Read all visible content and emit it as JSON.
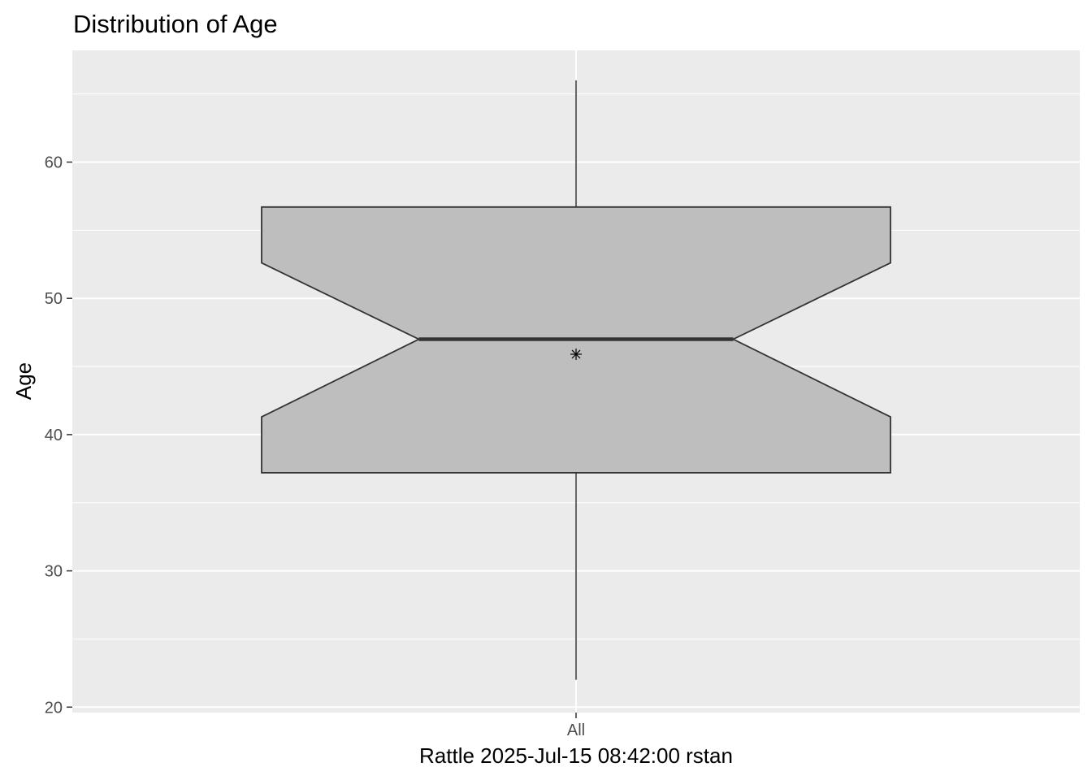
{
  "chart_data": {
    "type": "boxplot",
    "title": "Distribution of Age",
    "xlabel": "Rattle 2025-Jul-15 08:42:00 rstan",
    "ylabel": "Age",
    "categories": [
      "All"
    ],
    "ylim": [
      19.6,
      68.2
    ],
    "yticks": [
      20,
      30,
      40,
      50,
      60
    ],
    "ytick_labels": [
      "20",
      "30",
      "40",
      "50",
      "60"
    ],
    "grid": true,
    "notched": true,
    "mean_marker": "asterisk",
    "boxes": [
      {
        "category": "All",
        "whisker_low": 22,
        "q1": 37.2,
        "median": 47,
        "q3": 56.7,
        "whisker_high": 66,
        "notch_low": 41.3,
        "notch_high": 52.6,
        "mean": 45.9
      }
    ],
    "colors": {
      "panel_background": "#ebebeb",
      "grid_major": "#ffffff",
      "box_fill": "#bebebe",
      "box_outline": "#333333"
    }
  }
}
